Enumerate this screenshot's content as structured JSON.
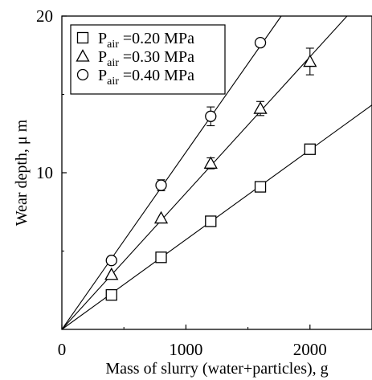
{
  "chart_data": {
    "type": "scatter",
    "xlabel": "Mass of slurry (water+particles), g",
    "ylabel": "Wear depth, μ m",
    "xlim": [
      0,
      2500
    ],
    "ylim": [
      0,
      20
    ],
    "x_ticks": [
      0,
      1000,
      2000
    ],
    "x_tick_labels": [
      "0",
      "1000",
      "2000"
    ],
    "y_ticks": [
      10,
      20
    ],
    "y_tick_labels": [
      "10",
      "20"
    ],
    "grid": false,
    "legend_position": "top-left",
    "series": [
      {
        "name": "P_air =0.20 MPa",
        "legend_main": "P",
        "legend_sub": "air",
        "legend_rest": " =0.20 MPa",
        "marker": "square",
        "x": [
          400,
          800,
          1200,
          1600,
          2000
        ],
        "y": [
          2.2,
          4.6,
          6.9,
          9.1,
          11.5
        ],
        "err": [
          0,
          0,
          0,
          0,
          0.3
        ],
        "fit_slope": 0.00573
      },
      {
        "name": "P_air =0.30 MPa",
        "legend_main": "P",
        "legend_sub": "air",
        "legend_rest": " =0.30 MPa",
        "marker": "triangle",
        "x": [
          400,
          800,
          1200,
          1600,
          2000
        ],
        "y": [
          3.5,
          7.1,
          10.6,
          14.1,
          17.1
        ],
        "err": [
          0,
          0,
          0.35,
          0.45,
          0.85
        ],
        "fit_slope": 0.0087
      },
      {
        "name": "P_air =0.40 MPa",
        "legend_main": "P",
        "legend_sub": "air",
        "legend_rest": " =0.40 MPa",
        "marker": "circle",
        "x": [
          400,
          800,
          1200,
          1600
        ],
        "y": [
          4.4,
          9.2,
          13.6,
          18.3
        ],
        "err": [
          0,
          0.35,
          0.6,
          0
        ],
        "fit_slope": 0.01131
      }
    ]
  }
}
